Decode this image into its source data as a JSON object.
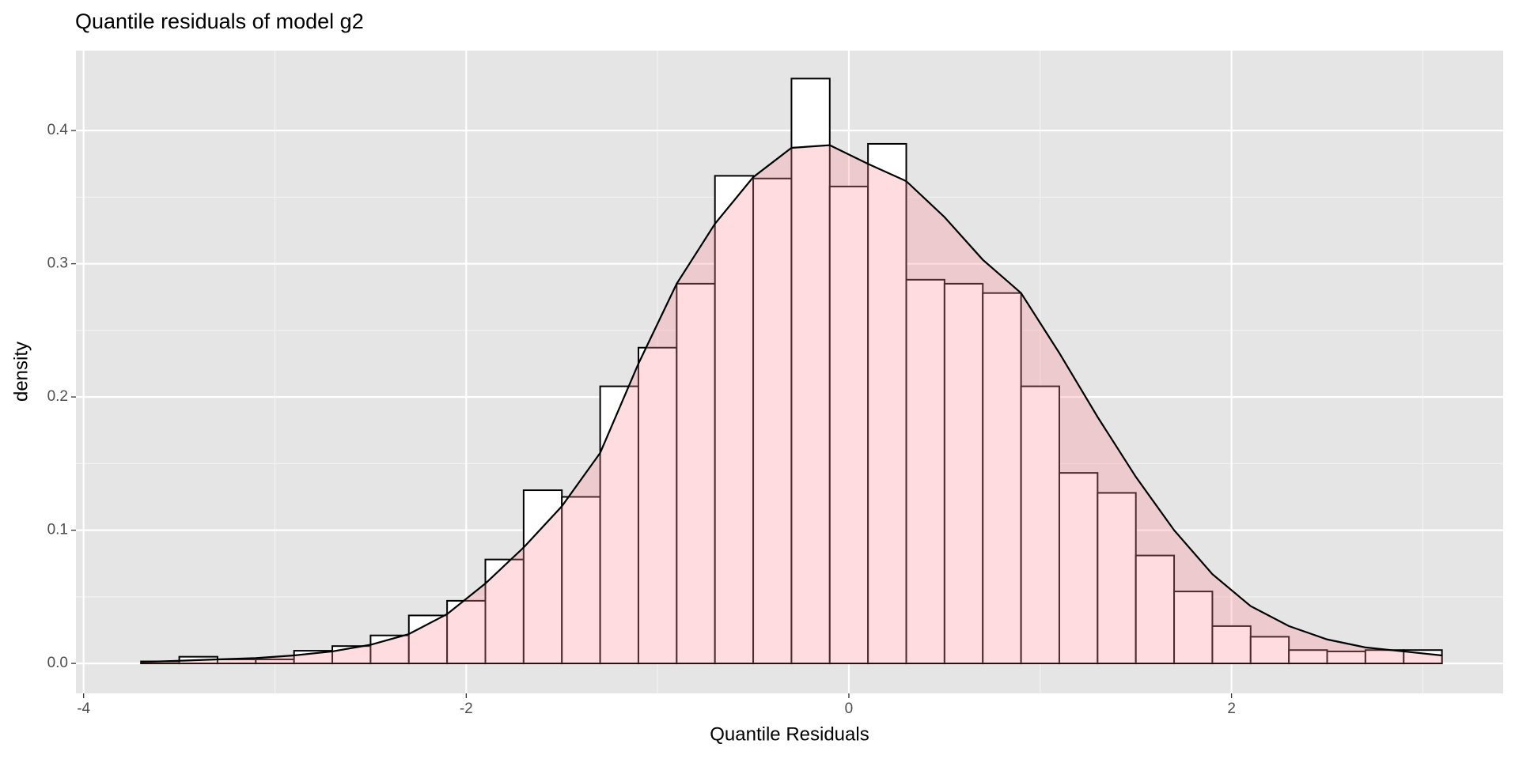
{
  "chart_data": {
    "type": "histogram",
    "title": "Quantile residuals of model g2",
    "x_label": "Quantile Residuals",
    "y_label": "density",
    "bins": [
      -3.7,
      -3.5,
      -3.3,
      -3.1,
      -2.9,
      -2.7,
      -2.5,
      -2.3,
      -2.1,
      -1.9,
      -1.7,
      -1.5,
      -1.3,
      -1.1,
      -0.9,
      -0.7,
      -0.5,
      -0.3,
      -0.1,
      0.1,
      0.3,
      0.5,
      0.7,
      0.9,
      1.1,
      1.3,
      1.5,
      1.7,
      1.9,
      2.1,
      2.3,
      2.5,
      2.7,
      2.9,
      3.1
    ],
    "values": [
      0.0015,
      0.005,
      0.003,
      0.003,
      0.0095,
      0.013,
      0.021,
      0.036,
      0.047,
      0.078,
      0.13,
      0.125,
      0.208,
      0.237,
      0.285,
      0.366,
      0.364,
      0.439,
      0.358,
      0.39,
      0.288,
      0.285,
      0.278,
      0.208,
      0.143,
      0.128,
      0.081,
      0.054,
      0.028,
      0.02,
      0.01,
      0.009,
      0.01,
      0.01
    ],
    "color": "#ffffff",
    "edge_color": "#000000",
    "density": {
      "x": [
        -3.7,
        -3.5,
        -3.3,
        -3.1,
        -2.9,
        -2.7,
        -2.5,
        -2.3,
        -2.1,
        -1.9,
        -1.7,
        -1.5,
        -1.3,
        -1.1,
        -0.9,
        -0.7,
        -0.5,
        -0.3,
        -0.1,
        0.1,
        0.3,
        0.5,
        0.7,
        0.9,
        1.1,
        1.3,
        1.5,
        1.7,
        1.9,
        2.1,
        2.3,
        2.5,
        2.7,
        2.9,
        3.1
      ],
      "values": [
        0.001,
        0.002,
        0.003,
        0.004,
        0.006,
        0.009,
        0.014,
        0.022,
        0.037,
        0.06,
        0.087,
        0.118,
        0.158,
        0.225,
        0.285,
        0.33,
        0.365,
        0.387,
        0.389,
        0.375,
        0.362,
        0.335,
        0.303,
        0.278,
        0.233,
        0.185,
        0.14,
        0.1,
        0.067,
        0.043,
        0.028,
        0.018,
        0.012,
        0.009,
        0.006
      ],
      "color": "#ff8c99",
      "alpha": 0.3
    },
    "xlim": [
      -4.04,
      3.42
    ],
    "ylim": [
      -0.0225,
      0.46
    ],
    "xticks": [
      -4,
      -2,
      0,
      2
    ],
    "yticks": [
      {
        "value": 0,
        "label": "0.0"
      },
      0.1,
      0.2,
      0.3,
      0.4
    ],
    "grid": true
  }
}
